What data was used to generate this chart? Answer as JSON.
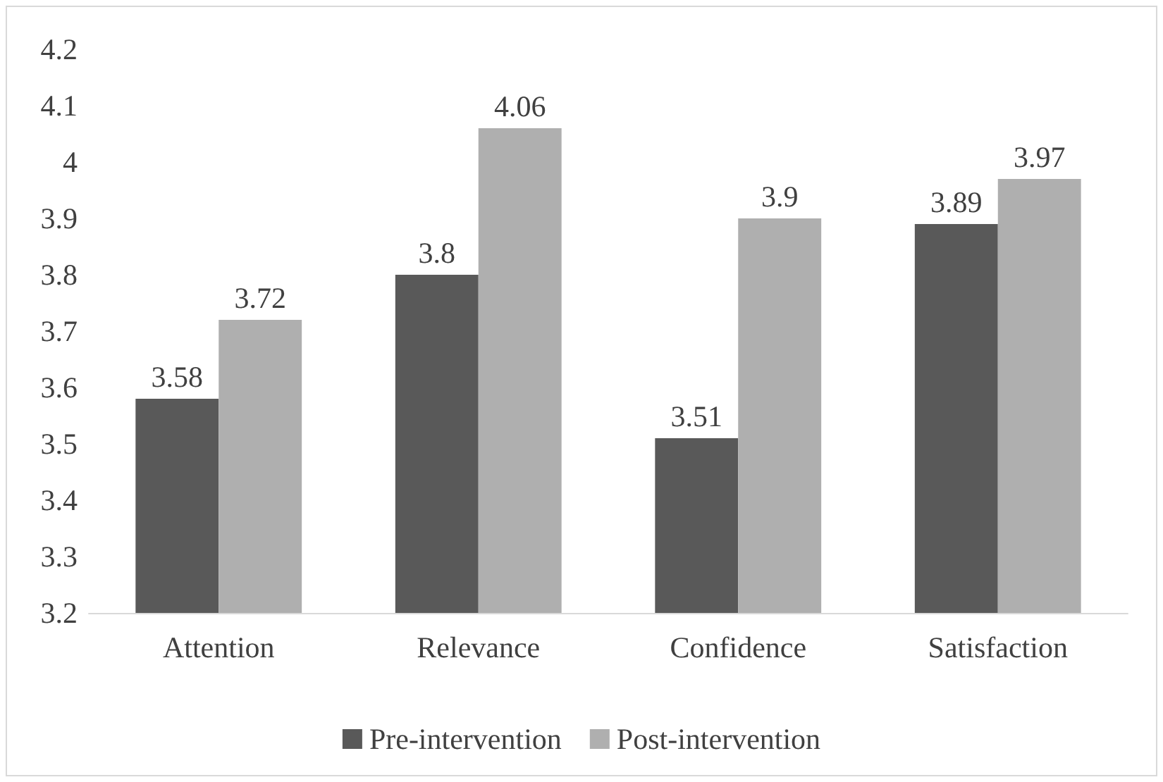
{
  "chart_data": {
    "type": "bar",
    "categories": [
      "Attention",
      "Relevance",
      "Confidence",
      "Satisfaction"
    ],
    "series": [
      {
        "name": "Pre-intervention",
        "color": "#595959",
        "values": [
          3.58,
          3.8,
          3.51,
          3.89
        ]
      },
      {
        "name": "Post-intervention",
        "color": "#afafaf",
        "values": [
          3.72,
          4.06,
          3.9,
          3.97
        ]
      }
    ],
    "ylim": [
      3.2,
      4.2
    ],
    "yticks": [
      3.2,
      3.3,
      3.4,
      3.5,
      3.6,
      3.7,
      3.8,
      3.9,
      4,
      4.1,
      4.2
    ],
    "grid": false,
    "legend": "bottom",
    "data_labels": true
  }
}
